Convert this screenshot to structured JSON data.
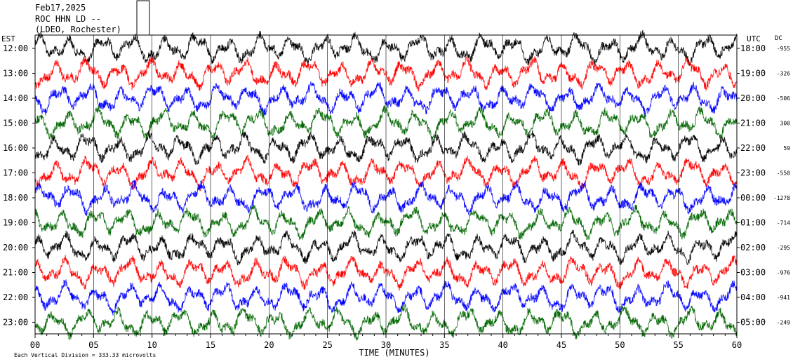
{
  "header": {
    "date": "Feb17,2025",
    "station": "ROC HHN LD --",
    "network": "(LDEO, Rochester)"
  },
  "axes": {
    "left_zone": "EST",
    "right_zone": "UTC",
    "dc_label": "DC",
    "xlabel": "TIME (MINUTES)",
    "footer": "Each Vertical Division =  333.33 microvolts"
  },
  "colors": {
    "cycle": [
      "#000000",
      "#ff0000",
      "#0000ff",
      "#006600"
    ],
    "gridline": "#000000",
    "background": "#ffffff"
  },
  "chart_data": {
    "type": "line",
    "title": "",
    "x": {
      "label": "TIME (MINUTES)",
      "range": [
        0,
        60
      ],
      "ticks": [
        "00",
        "05",
        "10",
        "15",
        "20",
        "25",
        "30",
        "35",
        "40",
        "45",
        "50",
        "55",
        "60"
      ]
    },
    "rows": [
      {
        "local": "12:00",
        "utc": "18:00",
        "dc": "-955"
      },
      {
        "local": "13:00",
        "utc": "19:00",
        "dc": "-326"
      },
      {
        "local": "14:00",
        "utc": "20:00",
        "dc": "-506"
      },
      {
        "local": "15:00",
        "utc": "21:00",
        "dc": "300"
      },
      {
        "local": "16:00",
        "utc": "22:00",
        "dc": "59"
      },
      {
        "local": "17:00",
        "utc": "23:00",
        "dc": "-550"
      },
      {
        "local": "18:00",
        "utc": "00:00",
        "dc": "-1278"
      },
      {
        "local": "19:00",
        "utc": "01:00",
        "dc": "-714"
      },
      {
        "local": "20:00",
        "utc": "02:00",
        "dc": "-295"
      },
      {
        "local": "21:00",
        "utc": "03:00",
        "dc": "-976"
      },
      {
        "local": "22:00",
        "utc": "04:00",
        "dc": "-941"
      },
      {
        "local": "23:00",
        "utc": "05:00",
        "dc": "-249"
      }
    ],
    "grid": true,
    "vertical_division_uV": 333.33
  }
}
